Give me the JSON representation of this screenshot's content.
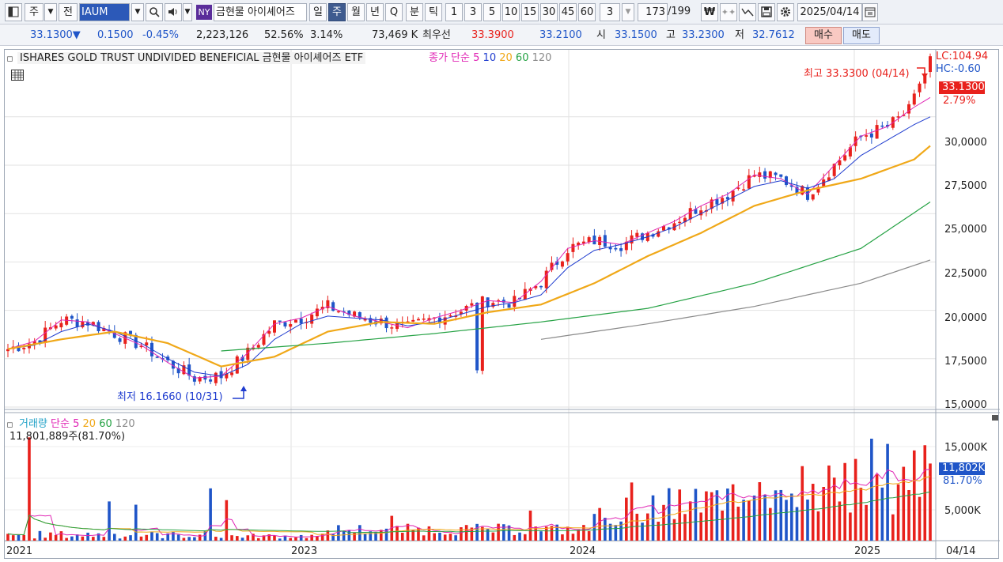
{
  "toolbar": {
    "market_type": "주",
    "prefix": "전",
    "symbol_code": "IAUM",
    "exchange_badge": "NY",
    "symbol_name": "금현물 아이셰어즈",
    "period_buttons": [
      "일",
      "주",
      "월",
      "년",
      "Q"
    ],
    "active_period": "주",
    "minute_buttons": [
      "분",
      "틱"
    ],
    "interval_buttons": [
      "1",
      "3",
      "5",
      "10",
      "15",
      "30",
      "45",
      "60"
    ],
    "interval_value": "3",
    "count": "173",
    "count_total": "/199",
    "date": "2025/04/14"
  },
  "quote": {
    "price": "33.1300",
    "change": "0.1500",
    "change_pct": "-0.45%",
    "volume": "2,223,126",
    "volume_ratio": "52.56%",
    "turnover": "3.14%",
    "amount": "73,469 K",
    "best_quote_label": "최우선",
    "ask": "33.3900",
    "bid": "33.2100",
    "open_label": "시",
    "open": "33.1500",
    "high_label": "고",
    "high": "33.2300",
    "low_label": "저",
    "low": "32.7612",
    "buy_label": "매수",
    "sell_label": "매도"
  },
  "price_panel": {
    "title": "ISHARES GOLD TRUST UNDIVIDED BENEFICIAL  금현물 아이셰어즈 ETF",
    "ma_prefix": "종가 단순",
    "ma_periods": [
      "5",
      "10",
      "20",
      "60",
      "120"
    ],
    "lc": "LC:104.94",
    "hc": "HC:-0.60",
    "current_price_tag": "33.1300",
    "current_pct": "2.79%",
    "high_annotation": "최고 33.3300 (04/14)",
    "low_annotation": "최저 16.1660 (10/31)",
    "y_ticks": [
      "30,0000",
      "27,5000",
      "25,0000",
      "22,5000",
      "20,0000",
      "17,5000",
      "15,0000"
    ]
  },
  "volume_panel": {
    "title": "거래량",
    "ma_prefix": "단순",
    "ma_periods": [
      "5",
      "20",
      "60",
      "120"
    ],
    "last_volume": "11,801,889주(81.70%)",
    "y_ticks": [
      "15,000K",
      "5,000K"
    ],
    "current_tag": "11,802K",
    "current_pct": "81.70%"
  },
  "x_axis": {
    "labels": [
      "2021",
      "2023",
      "2024",
      "2025"
    ],
    "current_date": "04/14"
  },
  "colors": {
    "up": "#e8211c",
    "down": "#1f55c8",
    "ma5": "#e024b4",
    "ma10": "#1f3ccf",
    "ma20": "#f0a818",
    "ma60": "#25a244",
    "ma120": "#8a8a8a",
    "active": "#3f5b8f"
  },
  "chart_data": {
    "type": "candlestick",
    "title": "ISHARES GOLD TRUST UNDIVIDED BENEFICIAL  금현물 아이셰어즈 ETF",
    "ylim": [
      15,
      33.3
    ],
    "series": [
      {
        "name": "ma5",
        "x": [
          0,
          5,
          10,
          15,
          20,
          25,
          30,
          35,
          40,
          45,
          50,
          55,
          60,
          65,
          70,
          75,
          80,
          85,
          90,
          95,
          100,
          105,
          110,
          115,
          120,
          125,
          130,
          135,
          140,
          145,
          150,
          155,
          160,
          165,
          170,
          173
        ],
        "values": [
          18.0,
          18.4,
          19.5,
          19.4,
          18.8,
          18.2,
          17.3,
          16.5,
          16.6,
          17.8,
          19.3,
          19.6,
          20.2,
          19.7,
          19.4,
          19.1,
          19.6,
          20.0,
          20.5,
          20.4,
          21.5,
          23.2,
          23.6,
          23.4,
          24.0,
          24.6,
          25.4,
          26.0,
          27.0,
          26.8,
          26.0,
          27.5,
          29.0,
          29.5,
          30.5,
          31.0
        ]
      },
      {
        "name": "ma10",
        "x": [
          0,
          5,
          10,
          15,
          20,
          25,
          30,
          35,
          40,
          45,
          50,
          55,
          60,
          65,
          70,
          75,
          80,
          85,
          90,
          95,
          100,
          105,
          110,
          115,
          120,
          125,
          130,
          135,
          140,
          145,
          150,
          155,
          160,
          165,
          170,
          173
        ],
        "values": [
          18.0,
          18.2,
          18.9,
          19.3,
          18.9,
          18.3,
          17.5,
          16.8,
          16.6,
          17.2,
          18.5,
          19.3,
          19.7,
          19.6,
          19.5,
          19.2,
          19.4,
          19.8,
          20.2,
          20.4,
          20.8,
          22.2,
          23.1,
          23.4,
          23.8,
          24.3,
          25.0,
          25.7,
          26.4,
          26.7,
          26.3,
          26.8,
          28.0,
          28.8,
          29.6,
          30.0
        ]
      },
      {
        "name": "ma20",
        "x": [
          0,
          10,
          20,
          30,
          40,
          50,
          60,
          70,
          80,
          90,
          100,
          110,
          120,
          130,
          140,
          150,
          160,
          170,
          173
        ],
        "values": [
          18.0,
          18.5,
          18.9,
          18.3,
          17.1,
          17.6,
          18.9,
          19.4,
          19.3,
          19.9,
          20.3,
          21.4,
          22.8,
          24.0,
          25.4,
          26.2,
          26.8,
          27.8,
          28.5
        ]
      },
      {
        "name": "ma60",
        "x": [
          40,
          60,
          80,
          100,
          120,
          140,
          160,
          173
        ],
        "values": [
          17.9,
          18.3,
          18.8,
          19.4,
          20.1,
          21.4,
          23.2,
          25.6
        ]
      },
      {
        "name": "ma120",
        "x": [
          100,
          120,
          140,
          160,
          173
        ],
        "values": [
          18.5,
          19.3,
          20.2,
          21.4,
          22.6
        ]
      }
    ]
  }
}
